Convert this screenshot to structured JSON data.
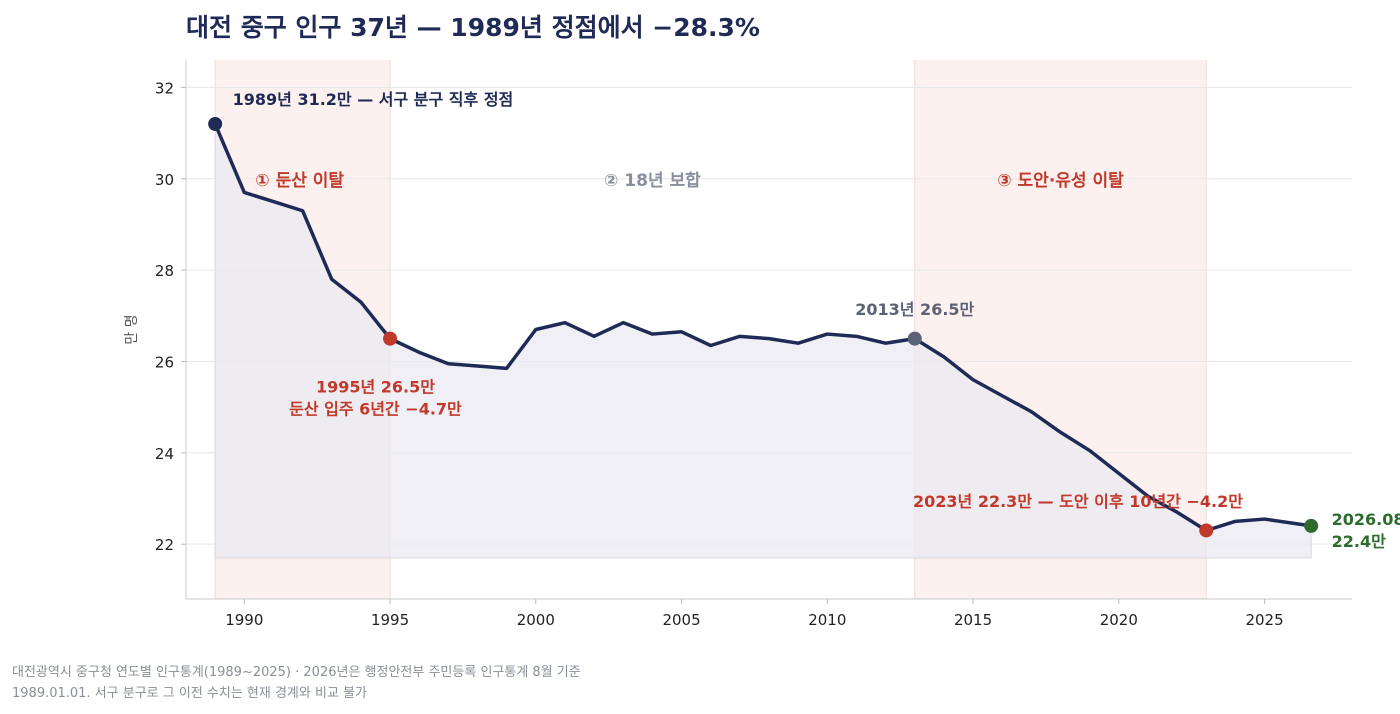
{
  "chart_data": {
    "type": "line",
    "title": "대전 중구 인구 37년 — 1989년 정점에서 −28.3%",
    "ylabel": "만 명",
    "xlim": [
      1988,
      2028
    ],
    "ylim": [
      20.8,
      32.6
    ],
    "x_ticks": [
      1990,
      1995,
      2000,
      2005,
      2010,
      2015,
      2020,
      2025
    ],
    "y_ticks": [
      22,
      24,
      26,
      28,
      30,
      32
    ],
    "grid": "horizontal",
    "x": [
      1989,
      1990,
      1991,
      1992,
      1993,
      1994,
      1995,
      1996,
      1997,
      1998,
      1999,
      2000,
      2001,
      2002,
      2003,
      2004,
      2005,
      2006,
      2007,
      2008,
      2009,
      2010,
      2011,
      2012,
      2013,
      2014,
      2015,
      2016,
      2017,
      2018,
      2019,
      2020,
      2021,
      2022,
      2023,
      2024,
      2025,
      2026.6
    ],
    "values": [
      31.2,
      29.7,
      29.5,
      29.3,
      27.8,
      27.3,
      26.5,
      26.2,
      25.95,
      25.9,
      25.85,
      26.7,
      26.85,
      26.55,
      26.85,
      26.6,
      26.65,
      26.35,
      26.55,
      26.5,
      26.4,
      26.6,
      26.55,
      26.4,
      26.5,
      26.1,
      25.6,
      25.25,
      24.9,
      24.45,
      24.05,
      23.55,
      23.05,
      22.7,
      22.3,
      22.5,
      22.55,
      22.4
    ],
    "fill_baseline": 21.7,
    "line_color": "#1f2a56",
    "fill_color": "#e9eaf1",
    "periods": [
      {
        "start": 1989,
        "end": 1995,
        "label": "① 둔산 이탈",
        "label_x": 1991.9,
        "label_y": 30.0,
        "color": "#c0392b",
        "shaded": true
      },
      {
        "start": 1995,
        "end": 2013,
        "label": "② 18년 보합",
        "label_x": 2004.0,
        "label_y": 30.0,
        "color": "#8a8f9e",
        "shaded": false
      },
      {
        "start": 2013,
        "end": 2023,
        "label": "③ 도안·유성 이탈",
        "label_x": 2018.0,
        "label_y": 30.0,
        "color": "#c0392b",
        "shaded": true
      }
    ],
    "shade_color": "#fdf1ef",
    "annotations": [
      {
        "x": 1989,
        "y": 31.2,
        "dot_color": "#1f2a56",
        "lines": [
          "1989년 31.2만 — 서구 분구 직후 정점"
        ],
        "text_x": 1989.6,
        "text_y": 31.75,
        "color": "#1f2a56",
        "anchor": "start"
      },
      {
        "x": 1995,
        "y": 26.5,
        "dot_color": "#c0392b",
        "lines": [
          "1995년 26.5만",
          "둔산 입주 6년간 −4.7만"
        ],
        "text_x": 1994.5,
        "text_y": 25.45,
        "color": "#c0392b",
        "anchor": "middle"
      },
      {
        "x": 2013,
        "y": 26.5,
        "dot_color": "#5b6277",
        "lines": [
          "2013년 26.5만"
        ],
        "text_x": 2013.0,
        "text_y": 27.15,
        "color": "#5b6277",
        "anchor": "middle"
      },
      {
        "x": 2023,
        "y": 22.3,
        "dot_color": "#c0392b",
        "lines": [
          "2023년 22.3만 — 도안 이후 10년간 −4.2만"
        ],
        "text_x": 2018.6,
        "text_y": 22.95,
        "color": "#c0392b",
        "anchor": "middle"
      },
      {
        "x": 2026.6,
        "y": 22.4,
        "dot_color": "#2e6b2e",
        "lines": [
          "2026.08",
          "22.4만"
        ],
        "text_x": 2027.3,
        "text_y": 22.55,
        "color": "#2e6b2e",
        "anchor": "start"
      }
    ]
  },
  "source": {
    "line1": "대전광역시 중구청 연도별 인구통계(1989~2025) · 2026년은 행정안전부 주민등록 인구통계 8월 기준",
    "line2": "1989.01.01. 서구 분구로 그 이전 수치는 현재 경계와 비교 불가"
  }
}
